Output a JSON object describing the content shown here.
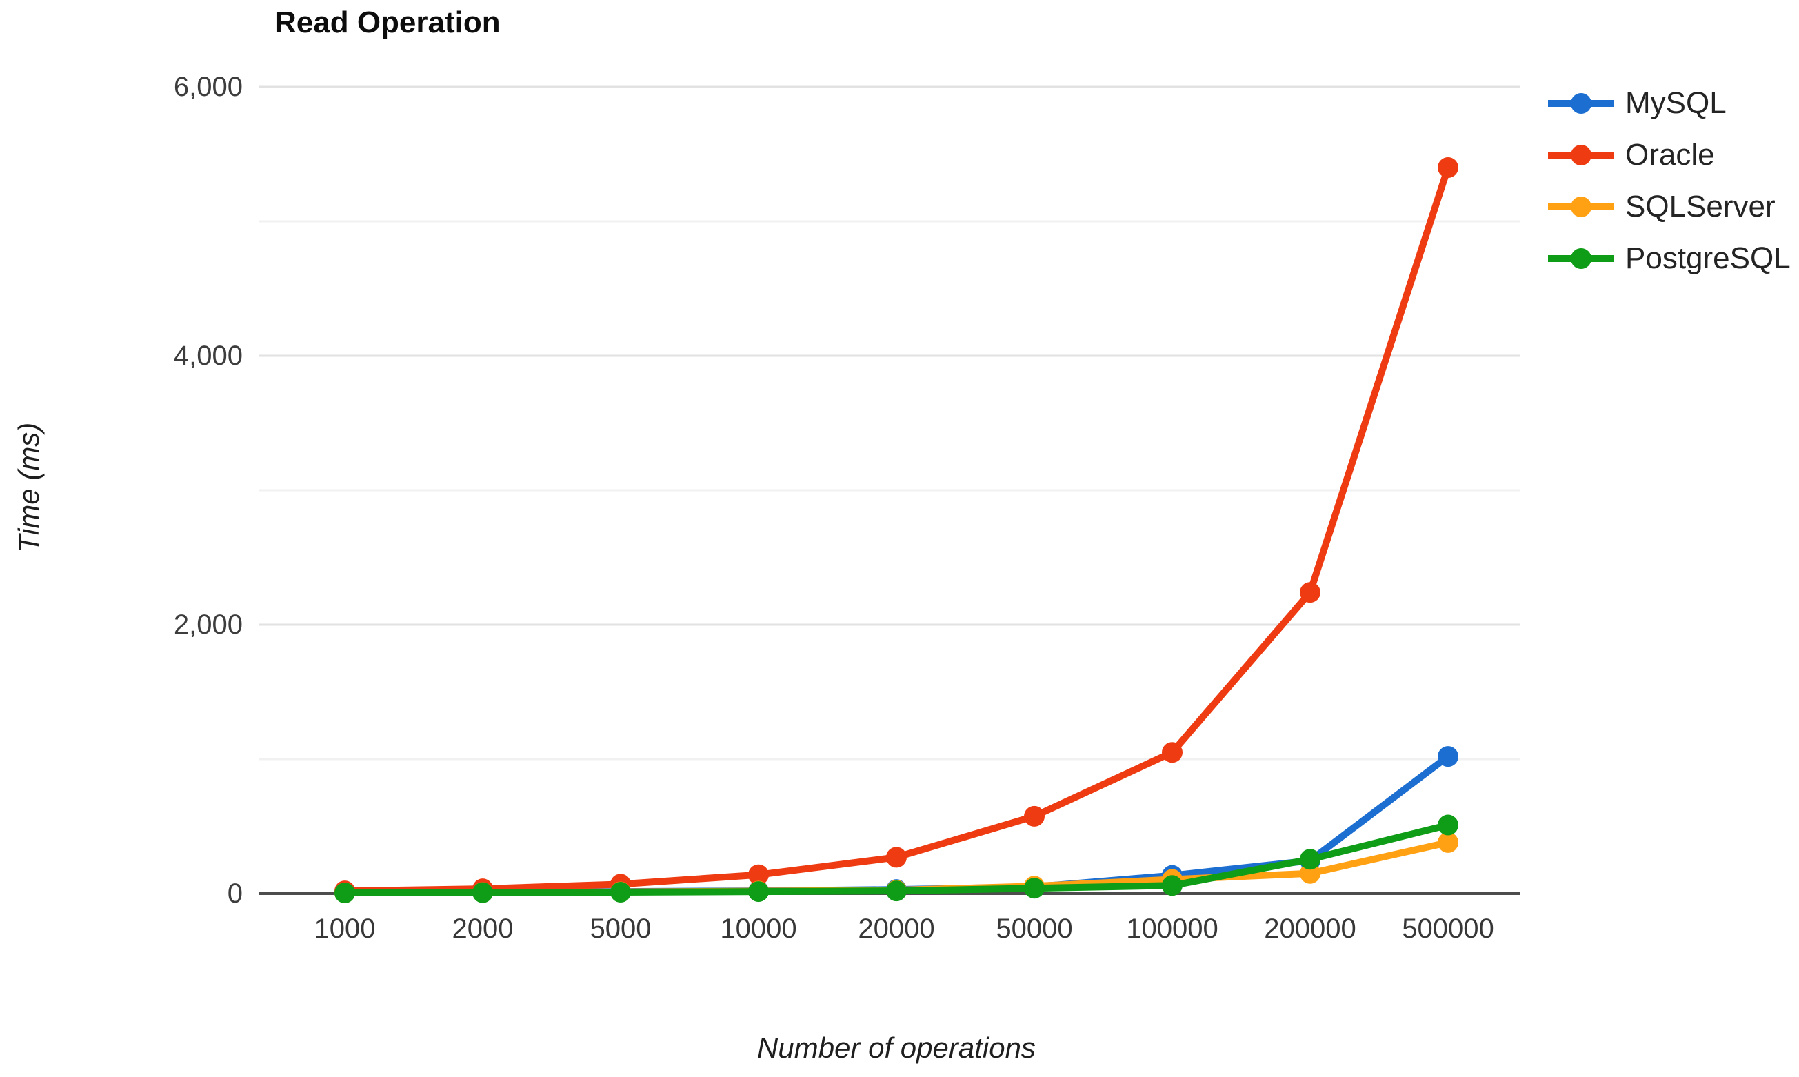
{
  "title": "Read Operation",
  "axes": {
    "y_title": "Time (ms)",
    "x_title": "Number of operations",
    "y_ticks": [
      {
        "value": 0,
        "label": "0"
      },
      {
        "value": 2000,
        "label": "2,000"
      },
      {
        "value": 4000,
        "label": "4,000"
      },
      {
        "value": 6000,
        "label": "6,000"
      }
    ],
    "y_minor_gridlines": [
      1000,
      3000,
      5000
    ],
    "x_tick_labels": [
      "1000",
      "2000",
      "5000",
      "10000",
      "20000",
      "50000",
      "100000",
      "200000",
      "500000"
    ]
  },
  "legend": {
    "position": "right",
    "items": [
      "MySQL",
      "Oracle",
      "SQLServer",
      "PostgreSQL"
    ]
  },
  "colors": {
    "mysql": "#1c6fd1",
    "oracle": "#ee3b12",
    "sqlserver": "#ffa113",
    "postgresql": "#0f9d17",
    "grid_major": "#e2e2e2",
    "grid_minor": "#f1f1f1",
    "axis_line": "#4d4d4d",
    "tick_text": "#3d3d3d",
    "title_text": "#0d0d0d"
  },
  "chart_data": {
    "type": "line",
    "title": "Read Operation",
    "xlabel": "Number of operations",
    "ylabel": "Time (ms)",
    "categories": [
      1000,
      2000,
      5000,
      10000,
      20000,
      50000,
      100000,
      200000,
      500000
    ],
    "x_axis_type": "categorical-equal-spacing",
    "ylim": [
      0,
      6000
    ],
    "gridlines": "horizontal every 1000, labels every 2000, minor lines fainter",
    "legend_position": "right",
    "series": [
      {
        "name": "MySQL",
        "color": "#1c6fd1",
        "values": [
          8,
          10,
          15,
          20,
          30,
          50,
          135,
          245,
          1020
        ]
      },
      {
        "name": "Oracle",
        "color": "#ee3b12",
        "values": [
          20,
          35,
          70,
          140,
          270,
          575,
          1050,
          2240,
          5400
        ]
      },
      {
        "name": "SQLServer",
        "color": "#ffa113",
        "values": [
          6,
          8,
          12,
          18,
          25,
          55,
          105,
          150,
          380
        ]
      },
      {
        "name": "PostgreSQL",
        "color": "#0f9d17",
        "values": [
          5,
          7,
          10,
          15,
          20,
          40,
          60,
          255,
          510
        ]
      }
    ]
  }
}
